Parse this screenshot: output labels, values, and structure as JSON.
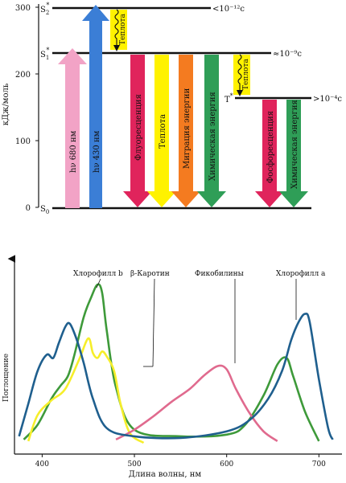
{
  "energy_diagram": {
    "y_axis_label": "кДж/моль",
    "y_ticks": [
      "0",
      "100",
      "200",
      "300"
    ],
    "levels": {
      "s2": {
        "label": "S",
        "sub": "2",
        "sup": "*",
        "lifetime": "<10⁻¹²с"
      },
      "s1": {
        "label": "S",
        "sub": "1",
        "sup": "*",
        "lifetime": "≈10⁻⁹с"
      },
      "t": {
        "label": "T",
        "sup": "*",
        "lifetime": ">10⁻⁴с"
      },
      "s0": {
        "label": "S",
        "sub": "0"
      }
    },
    "arrows": [
      {
        "id": "absorb-680",
        "label": "hν 680 нм",
        "color": "#f2a3c6"
      },
      {
        "id": "absorb-430",
        "label": "hν 430 нм",
        "color": "#3b7ed6"
      },
      {
        "id": "fluorescence",
        "label": "Флуоресценция",
        "color": "#e0245c"
      },
      {
        "id": "heat-s1",
        "label": "Теплота",
        "color": "#fff200"
      },
      {
        "id": "migration",
        "label": "Миграция энергии",
        "color": "#f47b20"
      },
      {
        "id": "chemical-s1",
        "label": "Химическая энергия",
        "color": "#2f9e57"
      },
      {
        "id": "phosphorescence",
        "label": "Фосфоресценция",
        "color": "#e0245c"
      },
      {
        "id": "chemical-t",
        "label": "Химическая энергия",
        "color": "#2f9e57"
      }
    ],
    "heat_boxes": [
      {
        "id": "heat-s2-s1",
        "label": "Теплота",
        "color": "#fff200"
      },
      {
        "id": "heat-s1-t",
        "label": "Теплота",
        "color": "#fff200"
      }
    ]
  },
  "chart_data": {
    "type": "line",
    "xlabel": "Длина волны, нм",
    "ylabel": "Поглощение",
    "xlim": [
      370,
      725
    ],
    "x_ticks": [
      400,
      500,
      600,
      700
    ],
    "series": [
      {
        "name": "Хлорофилл b",
        "color": "#3e9a3a",
        "x": [
          380,
          395,
          410,
          420,
          428,
          435,
          445,
          453,
          460,
          465,
          470,
          480,
          500,
          550,
          600,
          620,
          640,
          655,
          665,
          672,
          685,
          700
        ],
        "y": [
          0.03,
          0.12,
          0.28,
          0.36,
          0.42,
          0.55,
          0.78,
          0.9,
          0.98,
          0.93,
          0.7,
          0.35,
          0.09,
          0.05,
          0.06,
          0.12,
          0.3,
          0.49,
          0.53,
          0.42,
          0.2,
          0.02
        ]
      },
      {
        "name": "β-Каротин",
        "color": "#f6ee2a",
        "x": [
          385,
          395,
          410,
          425,
          440,
          450,
          455,
          460,
          465,
          470,
          478,
          485,
          495,
          510
        ],
        "y": [
          0.02,
          0.18,
          0.27,
          0.34,
          0.52,
          0.65,
          0.56,
          0.53,
          0.57,
          0.54,
          0.45,
          0.25,
          0.07,
          0.01
        ]
      },
      {
        "name": "Фикобилины",
        "color": "#e06a8e",
        "x": [
          480,
          500,
          520,
          540,
          560,
          575,
          590,
          600,
          610,
          625,
          640,
          655
        ],
        "y": [
          0.03,
          0.09,
          0.17,
          0.26,
          0.34,
          0.42,
          0.48,
          0.46,
          0.34,
          0.19,
          0.08,
          0.02
        ]
      },
      {
        "name": "Хлорофилл a",
        "color": "#1f5f8e",
        "x": [
          375,
          385,
          395,
          405,
          412,
          418,
          425,
          430,
          437,
          445,
          455,
          470,
          500,
          550,
          600,
          625,
          645,
          660,
          670,
          678,
          685,
          690,
          700,
          710,
          715
        ],
        "y": [
          0.05,
          0.25,
          0.45,
          0.55,
          0.53,
          0.62,
          0.72,
          0.74,
          0.65,
          0.5,
          0.28,
          0.1,
          0.05,
          0.04,
          0.08,
          0.15,
          0.28,
          0.45,
          0.64,
          0.75,
          0.8,
          0.75,
          0.4,
          0.1,
          0.03
        ]
      }
    ],
    "annotations": [
      "Хлорофилл b",
      "β-Каротин",
      "Фикобилины",
      "Хлорофилл a"
    ]
  }
}
